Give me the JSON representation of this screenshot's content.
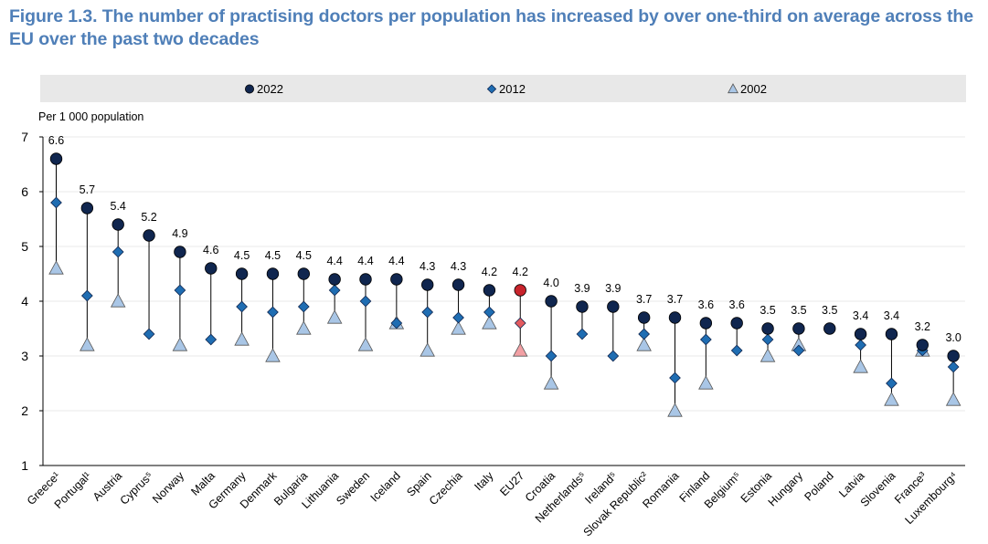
{
  "title": "Figure 1.3. The number of practising doctors per population has increased by over one-third on average across the EU over the past two decades",
  "colors": {
    "title": "#4f7fb8",
    "legend_bg": "#e8e8e8",
    "dot_2022": "#10264f",
    "diamond_2012": "#1f6db2",
    "triangle_2002": "#a9c6e6",
    "eu_dot_2022": "#c8242c",
    "eu_diamond_2012": "#e35a5f",
    "eu_triangle_2002": "#f2a0a4",
    "gridline": "#e8e8e8",
    "connector": "#000000"
  },
  "chart_data": {
    "type": "scatter",
    "ylabel": "Per 1 000 population",
    "ylim": [
      1,
      7
    ],
    "yticks": [
      1,
      2,
      3,
      4,
      5,
      6,
      7
    ],
    "grid": "horizontal",
    "legend_position": "top",
    "categories": [
      "Greece¹",
      "Portugal¹",
      "Austria",
      "Cyprus⁵",
      "Norway",
      "Malta",
      "Germany",
      "Denmark",
      "Bulgaria",
      "Lithuania",
      "Sweden",
      "Iceland",
      "Spain",
      "Czechia",
      "Italy",
      "EU27",
      "Croatia",
      "Netherlands⁵",
      "Ireland⁵",
      "Slovak Republic²",
      "Romania",
      "Finland",
      "Belgium⁵",
      "Estonia",
      "Hungary",
      "Poland",
      "Latvia",
      "Slovenia",
      "France³",
      "Luxembourg⁴"
    ],
    "highlight_category": "EU27",
    "series": [
      {
        "name": "2022",
        "marker": "circle",
        "values": [
          6.6,
          5.7,
          5.4,
          5.2,
          4.9,
          4.6,
          4.5,
          4.5,
          4.5,
          4.4,
          4.4,
          4.4,
          4.3,
          4.3,
          4.2,
          4.2,
          4.0,
          3.9,
          3.9,
          3.7,
          3.7,
          3.6,
          3.6,
          3.5,
          3.5,
          3.5,
          3.4,
          3.4,
          3.2,
          3.0
        ]
      },
      {
        "name": "2012",
        "marker": "diamond",
        "values": [
          5.8,
          4.1,
          4.9,
          3.4,
          4.2,
          3.3,
          3.9,
          3.8,
          3.9,
          4.2,
          4.0,
          3.6,
          3.8,
          3.7,
          3.8,
          3.6,
          3.0,
          3.4,
          3.0,
          3.4,
          2.6,
          3.3,
          3.1,
          3.3,
          3.1,
          null,
          3.2,
          2.5,
          3.1,
          2.8
        ]
      },
      {
        "name": "2002",
        "marker": "triangle",
        "values": [
          4.6,
          3.2,
          4.0,
          null,
          3.2,
          null,
          3.3,
          3.0,
          3.5,
          3.7,
          3.2,
          3.6,
          3.1,
          3.5,
          3.6,
          3.1,
          2.5,
          null,
          null,
          3.2,
          2.0,
          2.5,
          null,
          3.0,
          3.2,
          null,
          2.8,
          2.2,
          3.1,
          2.2
        ]
      }
    ],
    "data_labels": [
      "6.6",
      "5.7",
      "5.4",
      "5.2",
      "4.9",
      "4.6",
      "4.5",
      "4.5",
      "4.5",
      "4.4",
      "4.4",
      "4.4",
      "4.3",
      "4.3",
      "4.2",
      "4.2",
      "4.0",
      "3.9",
      "3.9",
      "3.7",
      "3.7",
      "3.6",
      "3.6",
      "3.5",
      "3.5",
      "3.5",
      "3.4",
      "3.4",
      "3.2",
      "3.0"
    ]
  }
}
